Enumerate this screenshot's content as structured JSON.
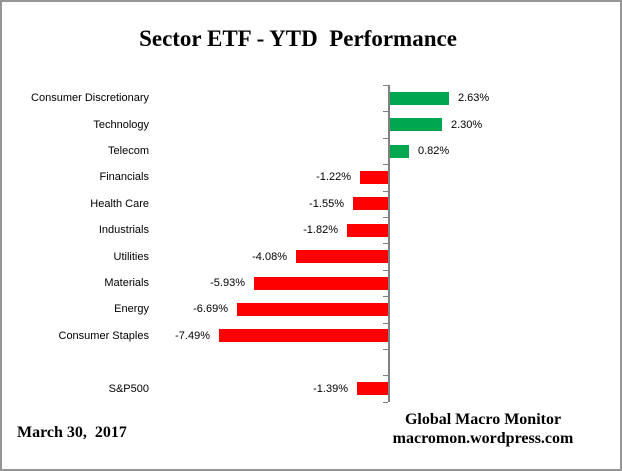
{
  "chart_data": {
    "type": "bar",
    "orientation": "horizontal",
    "title": "Sector ETF - YTD  Performance",
    "categories": [
      "Consumer Discretionary",
      "Technology",
      "Telecom",
      "Financials",
      "Health Care",
      "Industrials",
      "Utilities",
      "Materials",
      "Energy",
      "Consumer Staples",
      "S&P500"
    ],
    "values": [
      2.63,
      2.3,
      0.82,
      -1.22,
      -1.55,
      -1.82,
      -4.08,
      -5.93,
      -6.69,
      -7.49,
      -1.39
    ],
    "value_labels": [
      "2.63%",
      "2.30%",
      "0.82%",
      "-1.22%",
      "-1.55%",
      "-1.82%",
      "-4.08%",
      "-5.93%",
      "-6.69%",
      "-7.49%",
      "-1.39%"
    ],
    "row_slots": [
      0,
      1,
      2,
      3,
      4,
      5,
      6,
      7,
      8,
      9,
      11
    ],
    "grid": false,
    "legend": false,
    "colors": {
      "positive_bar": "#00A650",
      "negative_bar": "#FF0000",
      "axis": "#808080",
      "text": "#000000"
    }
  },
  "footer": {
    "date": "March 30,  2017",
    "source_name": "Global Macro Monitor",
    "source_url": "macromon.wordpress.com"
  }
}
